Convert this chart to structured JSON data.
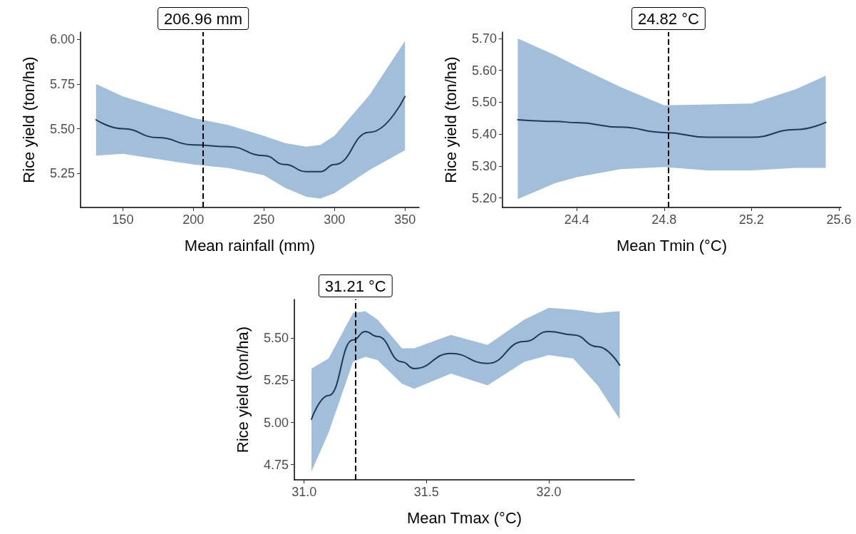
{
  "chart_data": [
    {
      "type": "line",
      "xlabel": "Mean rainfall (mm)",
      "ylabel": "Rice yield (ton/ha)",
      "xlim": [
        120,
        360
      ],
      "ylim": [
        5.06,
        6.04
      ],
      "xticks": [
        150,
        200,
        250,
        300,
        350
      ],
      "yticks": [
        {
          "value": 5.25,
          "label": "5.25"
        },
        {
          "value": 5.5,
          "label": "5.50"
        },
        {
          "value": 5.75,
          "label": "5.75"
        },
        {
          "value": 6,
          "label": "6.00"
        }
      ],
      "series": [
        {
          "color": "#1f3a56",
          "x": [
            131,
            150,
            175,
            200,
            225,
            250,
            265,
            280,
            290,
            300,
            325,
            350
          ],
          "values": [
            5.55,
            5.5,
            5.45,
            5.41,
            5.4,
            5.35,
            5.3,
            5.26,
            5.26,
            5.3,
            5.48,
            5.68
          ],
          "lower": [
            5.35,
            5.36,
            5.33,
            5.3,
            5.28,
            5.24,
            5.17,
            5.12,
            5.11,
            5.14,
            5.27,
            5.38
          ],
          "upper": [
            5.75,
            5.68,
            5.62,
            5.56,
            5.52,
            5.46,
            5.42,
            5.4,
            5.41,
            5.46,
            5.69,
            5.99
          ]
        }
      ],
      "ref_lines": [
        {
          "axis": "x",
          "value": 206.96,
          "label": "206.96 mm",
          "line_style": "dashed",
          "color": "#000000"
        }
      ]
    },
    {
      "type": "line",
      "xlabel": "Mean Tmin (°C)",
      "ylabel": "Rice yield (ton/ha)",
      "xlim": [
        24.06,
        25.61
      ],
      "ylim": [
        5.17,
        5.72
      ],
      "xticks": [
        24.4,
        24.8,
        25.2,
        25.6
      ],
      "yticks": [
        {
          "value": 5.2,
          "label": "5.20"
        },
        {
          "value": 5.3,
          "label": "5.30"
        },
        {
          "value": 5.4,
          "label": "5.40"
        },
        {
          "value": 5.5,
          "label": "5.50"
        },
        {
          "value": 5.6,
          "label": "5.60"
        },
        {
          "value": 5.7,
          "label": "5.70"
        }
      ],
      "series": [
        {
          "color": "#1f3a56",
          "x": [
            24.13,
            24.3,
            24.4,
            24.6,
            24.8,
            25.0,
            25.2,
            25.4,
            25.54
          ],
          "values": [
            5.445,
            5.44,
            5.436,
            5.422,
            5.405,
            5.39,
            5.39,
            5.414,
            5.437
          ],
          "lower": [
            5.196,
            5.246,
            5.265,
            5.29,
            5.297,
            5.286,
            5.286,
            5.294,
            5.294
          ],
          "upper": [
            5.7,
            5.648,
            5.613,
            5.548,
            5.49,
            5.493,
            5.496,
            5.54,
            5.583
          ]
        }
      ],
      "ref_lines": [
        {
          "axis": "x",
          "value": 24.82,
          "label": "24.82 °C",
          "line_style": "dashed",
          "color": "#000000"
        }
      ]
    },
    {
      "type": "line",
      "xlabel": "Mean Tmax (°C)",
      "ylabel": "Rice yield (ton/ha)",
      "xlim": [
        30.96,
        32.35
      ],
      "ylim": [
        4.66,
        5.73
      ],
      "xticks": [
        {
          "value": 31,
          "label": "31.0"
        },
        {
          "value": 31.5,
          "label": "31.5"
        },
        {
          "value": 32,
          "label": "32.0"
        }
      ],
      "yticks": [
        {
          "value": 4.75,
          "label": "4.75"
        },
        {
          "value": 5,
          "label": "5.00"
        },
        {
          "value": 5.25,
          "label": "5.25"
        },
        {
          "value": 5.5,
          "label": "5.50"
        }
      ],
      "series": [
        {
          "color": "#1f3a56",
          "x": [
            31.03,
            31.1,
            31.2,
            31.25,
            31.3,
            31.4,
            31.45,
            31.6,
            31.75,
            31.9,
            32.0,
            32.1,
            32.2,
            32.29
          ],
          "values": [
            5.02,
            5.16,
            5.49,
            5.54,
            5.51,
            5.36,
            5.32,
            5.41,
            5.35,
            5.48,
            5.54,
            5.52,
            5.45,
            5.34
          ],
          "lower": [
            4.71,
            4.94,
            5.36,
            5.39,
            5.37,
            5.23,
            5.2,
            5.29,
            5.22,
            5.36,
            5.4,
            5.38,
            5.22,
            5.02
          ],
          "upper": [
            5.32,
            5.38,
            5.65,
            5.66,
            5.61,
            5.44,
            5.44,
            5.52,
            5.46,
            5.61,
            5.68,
            5.67,
            5.65,
            5.66
          ]
        }
      ],
      "ref_lines": [
        {
          "axis": "x",
          "value": 31.21,
          "label": "31.21 °C",
          "line_style": "dashed",
          "color": "#000000"
        }
      ]
    }
  ]
}
